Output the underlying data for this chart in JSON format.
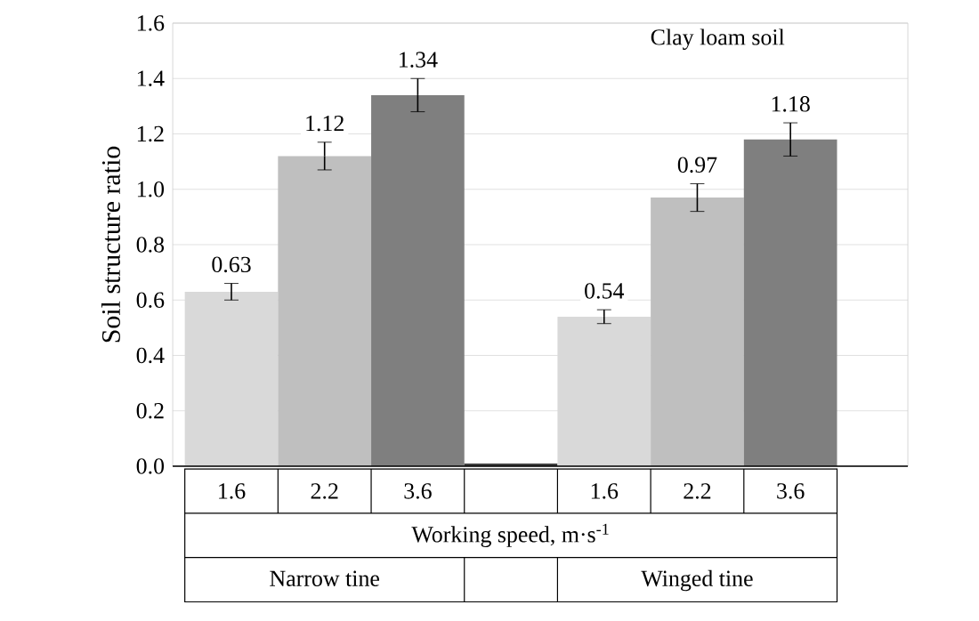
{
  "chart_data": {
    "type": "bar",
    "title": "Clay loam soil",
    "categories": [
      "1.6",
      "2.2",
      "3.6",
      null,
      "1.6",
      "2.2",
      "3.6"
    ],
    "values": [
      0.63,
      1.12,
      1.34,
      0.01,
      0.54,
      0.97,
      1.18
    ],
    "colors": [
      "#d9d9d9",
      "#bfbfbf",
      "#7f7f7f",
      "#404040",
      "#d9d9d9",
      "#bfbfbf",
      "#7f7f7f"
    ],
    "errors": [
      0.03,
      0.05,
      0.06,
      null,
      0.025,
      0.05,
      0.06
    ],
    "value_labels": [
      "0.63",
      "1.12",
      "1.34",
      null,
      "0.54",
      "0.97",
      "1.18"
    ],
    "xlabel": "Working speed, m·s$^{-1}$",
    "ylabel": "Soil structure ratio",
    "annotations": [
      "Narrow tine",
      "Winged tine"
    ],
    "ylim": [
      0,
      1.6
    ],
    "yticks": [
      {
        "value": 0,
        "label": "0.0"
      },
      {
        "value": 0.2,
        "label": "0.2"
      },
      {
        "value": 0.4,
        "label": "0.4"
      },
      {
        "value": 0.6,
        "label": "0.6"
      },
      {
        "value": 0.8,
        "label": "0.8"
      },
      {
        "value": 1.0,
        "label": "1.0"
      },
      {
        "value": 1.2,
        "label": "1.2"
      },
      {
        "value": 1.4,
        "label": "1.4"
      },
      {
        "value": 1.6,
        "label": "1.6"
      }
    ],
    "grid": "y"
  }
}
